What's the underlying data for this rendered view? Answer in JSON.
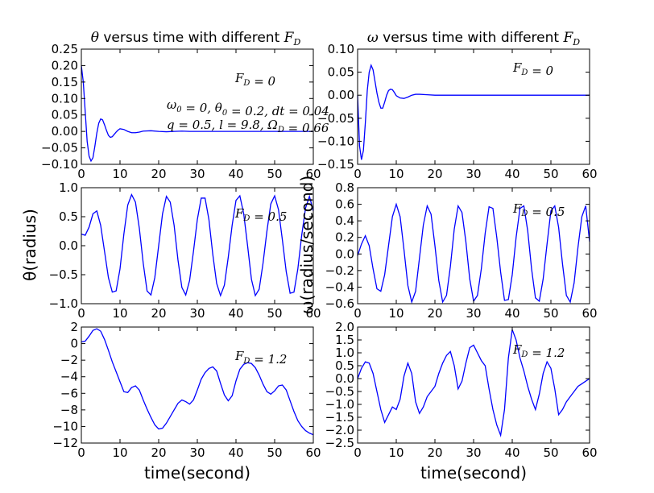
{
  "chart_data": {
    "type": "line",
    "figure": {
      "xlabel": "time(second)",
      "ylabel_left": "θ(radius)",
      "ylabel_right": "ω(radius/second)"
    },
    "panels": [
      {
        "id": "theta-fd0",
        "title": "θ versus time with different F_D",
        "annotations": [
          "F_D = 0",
          "ω_0 = 0, θ_0 = 0.2, dt = 0.04",
          "q = 0.5, l = 9.8, Ω_D = 0.66"
        ],
        "xlim": [
          0,
          60
        ],
        "ylim": [
          -0.1,
          0.25
        ],
        "xticks": [
          "0",
          "10",
          "20",
          "30",
          "40",
          "50",
          "60"
        ],
        "yticks": [
          "0.25",
          "0.20",
          "0.15",
          "0.10",
          "0.05",
          "0.00",
          "−0.05",
          "−0.10"
        ],
        "series": [
          {
            "x": [
              0,
              0.5,
              1,
              1.5,
              2,
              2.5,
              3,
              3.5,
              4,
              4.5,
              5,
              5.5,
              6,
              6.5,
              7,
              7.5,
              8,
              8.5,
              9,
              9.5,
              10,
              11,
              12,
              13,
              14,
              15,
              16,
              18,
              20,
              22,
              24,
              26,
              28,
              30,
              35,
              40,
              45,
              50,
              55,
              60
            ],
            "y": [
              0.2,
              0.15,
              0.06,
              -0.03,
              -0.075,
              -0.09,
              -0.08,
              -0.045,
              -0.005,
              0.025,
              0.038,
              0.035,
              0.02,
              0.003,
              -0.012,
              -0.018,
              -0.016,
              -0.009,
              -0.002,
              0.004,
              0.008,
              0.006,
              0,
              -0.004,
              -0.004,
              -0.002,
              0.001,
              0.002,
              0,
              -0.001,
              0,
              0.001,
              0,
              0,
              0,
              0,
              0,
              0,
              0,
              0
            ]
          }
        ]
      },
      {
        "id": "omega-fd0",
        "title": "ω versus time with different F_D",
        "annotations": [
          "F_D = 0"
        ],
        "xlim": [
          0,
          60
        ],
        "ylim": [
          -0.15,
          0.1
        ],
        "xticks": [
          "0",
          "10",
          "20",
          "30",
          "40",
          "50",
          "60"
        ],
        "yticks": [
          "0.10",
          "0.05",
          "0.00",
          "−0.05",
          "−0.10",
          "−0.15"
        ],
        "series": [
          {
            "x": [
              0,
              0.5,
              1,
              1.5,
              2,
              2.5,
              3,
              3.5,
              4,
              4.5,
              5,
              5.5,
              6,
              6.5,
              7,
              7.5,
              8,
              8.5,
              9,
              9.5,
              10,
              11,
              12,
              13,
              14,
              15,
              16,
              18,
              20,
              22,
              24,
              26,
              28,
              30,
              35,
              40,
              45,
              50,
              55,
              60
            ],
            "y": [
              0,
              -0.11,
              -0.14,
              -0.12,
              -0.06,
              0.01,
              0.05,
              0.065,
              0.055,
              0.03,
              0.005,
              -0.015,
              -0.028,
              -0.028,
              -0.015,
              0.0,
              0.01,
              0.013,
              0.012,
              0.006,
              -0.001,
              -0.006,
              -0.007,
              -0.004,
              0,
              0.002,
              0.002,
              0.001,
              0,
              0,
              0,
              0,
              0,
              0,
              0,
              0,
              0,
              0,
              0,
              0
            ]
          }
        ]
      },
      {
        "id": "theta-fd05",
        "title": "",
        "annotations": [
          "F_D = 0.5"
        ],
        "xlim": [
          0,
          60
        ],
        "ylim": [
          -1.0,
          1.0
        ],
        "xticks": [
          "0",
          "10",
          "20",
          "30",
          "40",
          "50",
          "60"
        ],
        "yticks": [
          "1.0",
          "0.5",
          "0.0",
          "−0.5",
          "−1.0"
        ],
        "series": [
          {
            "x": [
              0,
              1,
              2,
              3,
              4,
              5,
              6,
              7,
              8,
              9,
              10,
              11,
              12,
              13,
              14,
              15,
              16,
              17,
              18,
              19,
              20,
              21,
              22,
              23,
              24,
              25,
              26,
              27,
              28,
              29,
              30,
              31,
              32,
              33,
              34,
              35,
              36,
              37,
              38,
              39,
              40,
              41,
              42,
              43,
              44,
              45,
              46,
              47,
              48,
              49,
              50,
              51,
              52,
              53,
              54,
              55,
              56,
              57,
              58,
              59,
              60
            ],
            "y": [
              0.2,
              0.18,
              0.32,
              0.55,
              0.6,
              0.35,
              -0.1,
              -0.55,
              -0.8,
              -0.78,
              -0.4,
              0.2,
              0.7,
              0.88,
              0.75,
              0.3,
              -0.3,
              -0.78,
              -0.85,
              -0.55,
              0.0,
              0.55,
              0.85,
              0.75,
              0.35,
              -0.25,
              -0.72,
              -0.85,
              -0.6,
              -0.1,
              0.45,
              0.82,
              0.82,
              0.45,
              -0.15,
              -0.65,
              -0.86,
              -0.68,
              -0.2,
              0.35,
              0.78,
              0.86,
              0.55,
              0.0,
              -0.58,
              -0.86,
              -0.75,
              -0.3,
              0.25,
              0.72,
              0.86,
              0.62,
              0.1,
              -0.45,
              -0.82,
              -0.8,
              -0.4,
              0.18,
              0.65,
              0.85,
              0.6
            ]
          }
        ]
      },
      {
        "id": "omega-fd05",
        "title": "",
        "annotations": [
          "F_D = 0.5"
        ],
        "xlim": [
          0,
          60
        ],
        "ylim": [
          -0.6,
          0.8
        ],
        "xticks": [
          "0",
          "10",
          "20",
          "30",
          "40",
          "50",
          "60"
        ],
        "yticks": [
          "0.8",
          "0.6",
          "0.4",
          "0.2",
          "0.0",
          "−0.2",
          "−0.4",
          "−0.6"
        ],
        "series": [
          {
            "x": [
              0,
              1,
              2,
              3,
              4,
              5,
              6,
              7,
              8,
              9,
              10,
              11,
              12,
              13,
              14,
              15,
              16,
              17,
              18,
              19,
              20,
              21,
              22,
              23,
              24,
              25,
              26,
              27,
              28,
              29,
              30,
              31,
              32,
              33,
              34,
              35,
              36,
              37,
              38,
              39,
              40,
              41,
              42,
              43,
              44,
              45,
              46,
              47,
              48,
              49,
              50,
              51,
              52,
              53,
              54,
              55,
              56,
              57,
              58,
              59,
              60
            ],
            "y": [
              -0.02,
              0.12,
              0.22,
              0.1,
              -0.18,
              -0.42,
              -0.45,
              -0.25,
              0.1,
              0.45,
              0.6,
              0.45,
              0.05,
              -0.38,
              -0.58,
              -0.45,
              -0.05,
              0.35,
              0.58,
              0.48,
              0.1,
              -0.32,
              -0.58,
              -0.5,
              -0.15,
              0.3,
              0.58,
              0.5,
              0.15,
              -0.3,
              -0.57,
              -0.5,
              -0.18,
              0.25,
              0.57,
              0.55,
              0.2,
              -0.22,
              -0.56,
              -0.55,
              -0.25,
              0.2,
              0.55,
              0.58,
              0.28,
              -0.18,
              -0.53,
              -0.57,
              -0.3,
              0.12,
              0.52,
              0.58,
              0.32,
              -0.12,
              -0.5,
              -0.58,
              -0.35,
              0.08,
              0.45,
              0.58,
              0.15
            ]
          }
        ]
      },
      {
        "id": "theta-fd12",
        "title": "",
        "annotations": [
          "F_D = 1.2"
        ],
        "xlim": [
          0,
          60
        ],
        "ylim": [
          -12,
          2
        ],
        "xticks": [
          "0",
          "10",
          "20",
          "30",
          "40",
          "50",
          "60"
        ],
        "yticks": [
          "2",
          "0",
          "−2",
          "−4",
          "−6",
          "−8",
          "−10",
          "−12"
        ],
        "series": [
          {
            "x": [
              0,
              1,
              2,
              3,
              4,
              5,
              6,
              7,
              8,
              9,
              10,
              11,
              12,
              13,
              14,
              15,
              16,
              17,
              18,
              19,
              20,
              21,
              22,
              23,
              24,
              25,
              26,
              27,
              28,
              29,
              30,
              31,
              32,
              33,
              34,
              35,
              36,
              37,
              38,
              39,
              40,
              41,
              42,
              43,
              44,
              45,
              46,
              47,
              48,
              49,
              50,
              51,
              52,
              53,
              54,
              55,
              56,
              57,
              58,
              59,
              60
            ],
            "y": [
              0.2,
              0.3,
              0.9,
              1.6,
              1.8,
              1.5,
              0.5,
              -0.8,
              -2.2,
              -3.4,
              -4.6,
              -5.8,
              -5.9,
              -5.3,
              -5.1,
              -5.6,
              -6.8,
              -7.9,
              -8.9,
              -9.8,
              -10.3,
              -10.2,
              -9.6,
              -8.8,
              -8.0,
              -7.2,
              -6.8,
              -7.0,
              -7.3,
              -6.8,
              -5.6,
              -4.3,
              -3.5,
              -3.0,
              -2.8,
              -3.3,
              -4.8,
              -6.2,
              -6.9,
              -6.3,
              -4.5,
              -3.1,
              -2.5,
              -2.3,
              -2.4,
              -2.9,
              -3.8,
              -4.9,
              -5.8,
              -6.1,
              -5.7,
              -5.1,
              -5.0,
              -5.6,
              -6.9,
              -8.2,
              -9.3,
              -10.0,
              -10.5,
              -10.8,
              -11.0
            ]
          }
        ]
      },
      {
        "id": "omega-fd12",
        "title": "",
        "annotations": [
          "F_D = 1.2"
        ],
        "xlim": [
          0,
          60
        ],
        "ylim": [
          -2.5,
          2.0
        ],
        "xticks": [
          "0",
          "10",
          "20",
          "30",
          "40",
          "50",
          "60"
        ],
        "yticks": [
          "2.0",
          "1.5",
          "1.0",
          "0.5",
          "0.0",
          "−0.5",
          "−1.0",
          "−1.5",
          "−2.0",
          "−2.5"
        ],
        "series": [
          {
            "x": [
              0,
              1,
              2,
              3,
              4,
              5,
              6,
              7,
              8,
              9,
              10,
              11,
              12,
              13,
              14,
              15,
              16,
              17,
              18,
              19,
              20,
              21,
              22,
              23,
              24,
              25,
              26,
              27,
              28,
              29,
              30,
              31,
              32,
              33,
              34,
              35,
              36,
              37,
              38,
              39,
              40,
              41,
              42,
              43,
              44,
              45,
              46,
              47,
              48,
              49,
              50,
              51,
              52,
              53,
              54,
              55,
              56,
              57,
              58,
              59,
              60
            ],
            "y": [
              0,
              0.4,
              0.65,
              0.6,
              0.2,
              -0.5,
              -1.2,
              -1.7,
              -1.4,
              -1.1,
              -1.2,
              -0.8,
              0.1,
              0.6,
              0.2,
              -0.9,
              -1.35,
              -1.1,
              -0.7,
              -0.5,
              -0.3,
              0.2,
              0.6,
              0.9,
              1.05,
              0.5,
              -0.4,
              -0.1,
              0.6,
              1.2,
              1.3,
              1.0,
              0.7,
              0.5,
              -0.4,
              -1.2,
              -1.8,
              -2.2,
              -1.2,
              0.8,
              1.9,
              1.5,
              0.8,
              0.3,
              -0.3,
              -0.8,
              -1.2,
              -0.6,
              0.2,
              0.65,
              0.4,
              -0.4,
              -1.4,
              -1.2,
              -0.9,
              -0.7,
              -0.5,
              -0.3,
              -0.2,
              -0.1,
              0.0
            ]
          }
        ]
      }
    ]
  }
}
